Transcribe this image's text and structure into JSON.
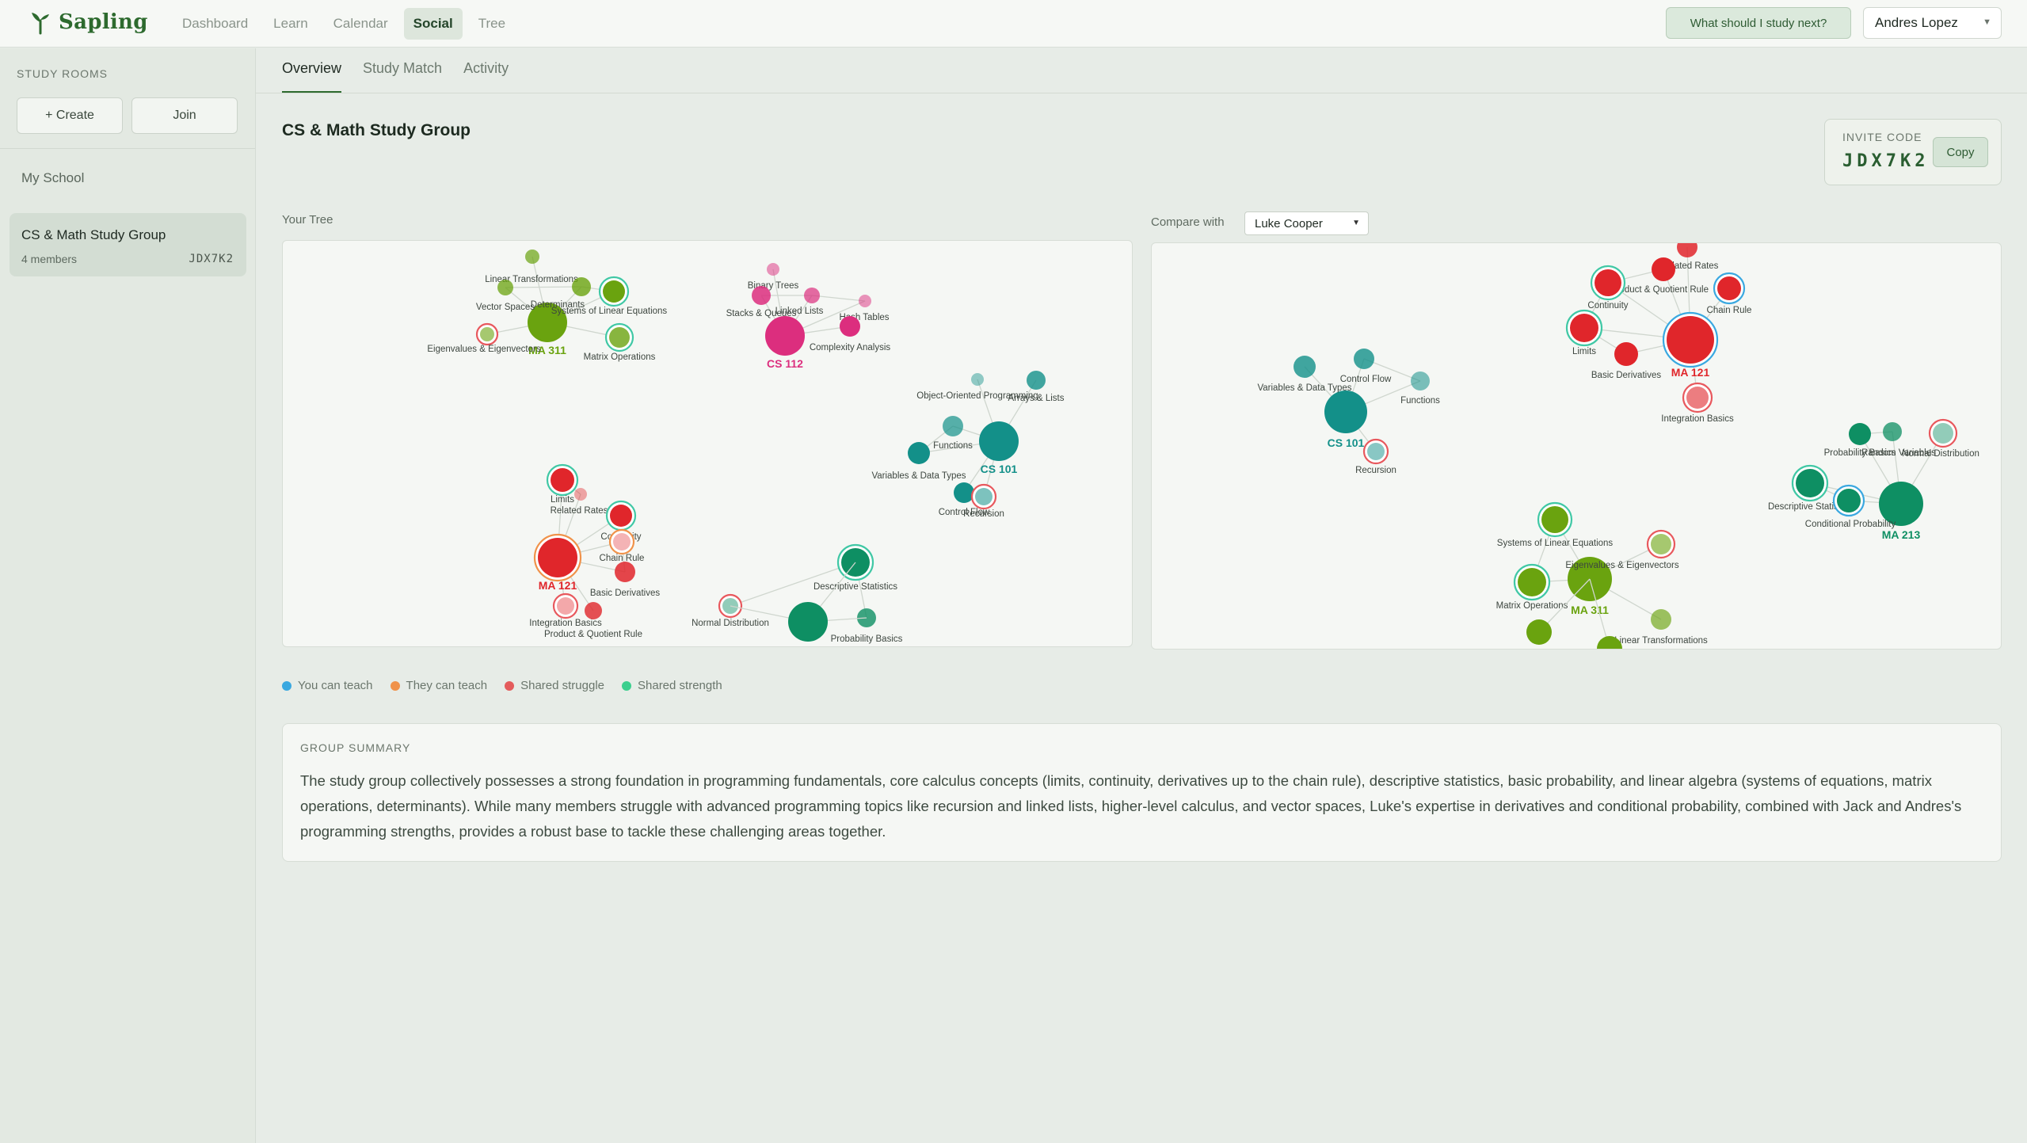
{
  "app": {
    "name": "Sapling"
  },
  "nav": {
    "items": [
      {
        "label": "Dashboard"
      },
      {
        "label": "Learn"
      },
      {
        "label": "Calendar"
      },
      {
        "label": "Social",
        "active": true
      },
      {
        "label": "Tree"
      }
    ],
    "cta": "What should I study next?",
    "user": "Andres Lopez"
  },
  "sidebar": {
    "heading": "STUDY ROOMS",
    "create_label": "+ Create",
    "join_label": "Join",
    "school": "My School",
    "room": {
      "name": "CS & Math Study Group",
      "members": "4 members",
      "code": "JDX7K2"
    }
  },
  "tabs": [
    {
      "label": "Overview",
      "active": true
    },
    {
      "label": "Study Match"
    },
    {
      "label": "Activity"
    }
  ],
  "group": {
    "title": "CS & Math Study Group",
    "invite_label": "INVITE CODE",
    "invite_code": "JDX7K2",
    "copy_label": "Copy"
  },
  "your_tree": {
    "label": "Your Tree",
    "nodes": [
      {
        "label": "MA 311",
        "hub": true
      },
      {
        "label": "Linear Transformations"
      },
      {
        "label": "Vector Spaces"
      },
      {
        "label": "Determinants"
      },
      {
        "label": "Systems of Linear Equations"
      },
      {
        "label": "Eigenvalues & Eigenvectors"
      },
      {
        "label": "Matrix Operations"
      },
      {
        "label": "CS 112",
        "hub": true
      },
      {
        "label": "Binary Trees"
      },
      {
        "label": "Stacks & Queues"
      },
      {
        "label": "Linked Lists"
      },
      {
        "label": "Hash Tables"
      },
      {
        "label": "Complexity Analysis"
      },
      {
        "label": "CS 101",
        "hub": true
      },
      {
        "label": "Object-Oriented Programming"
      },
      {
        "label": "Arrays & Lists"
      },
      {
        "label": "Functions"
      },
      {
        "label": "Variables & Data Types"
      },
      {
        "label": "Control Flow"
      },
      {
        "label": "Recursion"
      },
      {
        "label": "MA 121",
        "hub": true
      },
      {
        "label": "Limits"
      },
      {
        "label": "Related Rates"
      },
      {
        "label": "Continuity"
      },
      {
        "label": "Chain Rule"
      },
      {
        "label": "Basic Derivatives"
      },
      {
        "label": "Integration Basics"
      },
      {
        "label": "Product & Quotient Rule"
      },
      {
        "label": "Descriptive Statistics"
      },
      {
        "label": "Normal Distribution"
      },
      {
        "label": "Probability Basics"
      }
    ]
  },
  "compare": {
    "label": "Compare with",
    "selected": "Luke Cooper",
    "nodes": [
      {
        "label": "CS 101",
        "hub": true
      },
      {
        "label": "Control Flow"
      },
      {
        "label": "Variables & Data Types"
      },
      {
        "label": "Functions"
      },
      {
        "label": "Recursion"
      },
      {
        "label": "MA 121",
        "hub": true
      },
      {
        "label": "Related Rates"
      },
      {
        "label": "Product & Quotient Rule"
      },
      {
        "label": "Continuity"
      },
      {
        "label": "Chain Rule"
      },
      {
        "label": "Limits"
      },
      {
        "label": "Basic Derivatives"
      },
      {
        "label": "Integration Basics"
      },
      {
        "label": "MA 213",
        "hub": true
      },
      {
        "label": "Probability Basics"
      },
      {
        "label": "Random Variables"
      },
      {
        "label": "Normal Distribution"
      },
      {
        "label": "Descriptive Statistics"
      },
      {
        "label": "Conditional Probability"
      },
      {
        "label": "MA 311",
        "hub": true
      },
      {
        "label": "Systems of Linear Equations"
      },
      {
        "label": "Eigenvalues & Eigenvectors"
      },
      {
        "label": "Matrix Operations"
      },
      {
        "label": "Linear Transformations"
      }
    ]
  },
  "legend": [
    {
      "label": "You can teach",
      "color": "#3aa8e0"
    },
    {
      "label": "They can teach",
      "color": "#f0924a"
    },
    {
      "label": "Shared struggle",
      "color": "#e45c5c"
    },
    {
      "label": "Shared strength",
      "color": "#3ccf8e"
    }
  ],
  "summary": {
    "heading": "GROUP SUMMARY",
    "text": "The study group collectively possesses a strong foundation in programming fundamentals, core calculus concepts (limits, continuity, derivatives up to the chain rule), descriptive statistics, basic probability, and linear algebra (systems of equations, matrix operations, determinants). While many members struggle with advanced programming topics like recursion and linked lists, higher-level calculus, and vector spaces, Luke's expertise in derivatives and conditional probability, combined with Jack and Andres's programming strengths, provides a robust base to tackle these challenging areas together."
  },
  "colors": {
    "ma311": "#6aa30f",
    "cs112": "#dc2e7e",
    "cs101": "#139089",
    "ma121": "#e0262b",
    "ma213": "#0e8f63"
  }
}
